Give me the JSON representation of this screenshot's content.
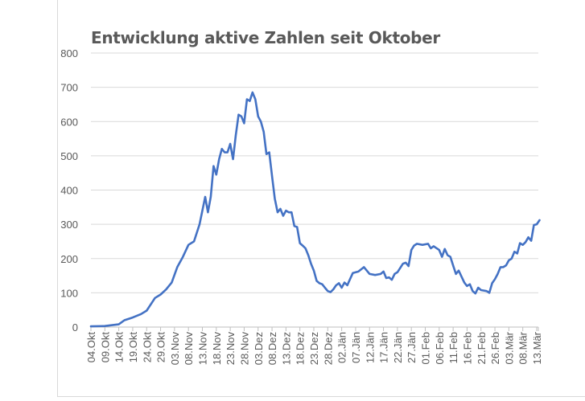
{
  "chart_data": {
    "type": "line",
    "title": "Entwicklung aktive Zahlen seit Oktober",
    "xlabel": "",
    "ylabel": "",
    "ylim": [
      0,
      800
    ],
    "yticks": [
      0,
      100,
      200,
      300,
      400,
      500,
      600,
      700,
      800
    ],
    "grid": true,
    "legend": "none",
    "color": "#4472c4",
    "xticks": [
      "04.Okt",
      "09.Okt",
      "14.Okt",
      "19.Okt",
      "24.Okt",
      "29.Okt",
      "03.Nov",
      "08.Nov",
      "13.Nov",
      "18.Nov",
      "23.Nov",
      "28.Nov",
      "03.Dez",
      "08.Dez",
      "13.Dez",
      "18.Dez",
      "23.Dez",
      "28.Dez",
      "02.Jän",
      "07.Jän",
      "12.Jän",
      "17.Jän",
      "22.Jän",
      "27.Jän",
      "01.Feb",
      "06.Feb",
      "11.Feb",
      "16.Feb",
      "21.Feb",
      "26.Feb",
      "03.Mär",
      "08.Mär",
      "13.Mär"
    ],
    "x": [
      "04.Okt",
      "09.Okt",
      "14.Okt",
      "16.Okt",
      "19.Okt",
      "22.Okt",
      "24.Okt",
      "27.Okt",
      "29.Okt",
      "31.Okt",
      "02.Nov",
      "04.Nov",
      "06.Nov",
      "08.Nov",
      "10.Nov",
      "12.Nov",
      "14.Nov",
      "15.Nov",
      "16.Nov",
      "17.Nov",
      "18.Nov",
      "19.Nov",
      "20.Nov",
      "21.Nov",
      "22.Nov",
      "23.Nov",
      "24.Nov",
      "25.Nov",
      "26.Nov",
      "27.Nov",
      "28.Nov",
      "29.Nov",
      "30.Nov",
      "01.Dez",
      "02.Dez",
      "03.Dez",
      "04.Dez",
      "05.Dez",
      "06.Dez",
      "07.Dez",
      "08.Dez",
      "09.Dez",
      "10.Dez",
      "11.Dez",
      "12.Dez",
      "13.Dez",
      "14.Dez",
      "15.Dez",
      "16.Dez",
      "17.Dez",
      "18.Dez",
      "19.Dez",
      "20.Dez",
      "21.Dez",
      "22.Dez",
      "23.Dez",
      "24.Dez",
      "25.Dez",
      "26.Dez",
      "27.Dez",
      "28.Dez",
      "29.Dez",
      "30.Dez",
      "31.Dez",
      "01.Jän",
      "02.Jän",
      "03.Jän",
      "04.Jän",
      "05.Jän",
      "06.Jän",
      "08.Jän",
      "10.Jän",
      "12.Jän",
      "14.Jän",
      "16.Jän",
      "17.Jän",
      "18.Jän",
      "19.Jän",
      "20.Jän",
      "21.Jän",
      "22.Jän",
      "24.Jän",
      "25.Jän",
      "26.Jän",
      "27.Jän",
      "28.Jän",
      "29.Jän",
      "31.Jän",
      "02.Feb",
      "03.Feb",
      "04.Feb",
      "06.Feb",
      "07.Feb",
      "08.Feb",
      "09.Feb",
      "10.Feb",
      "11.Feb",
      "12.Feb",
      "13.Feb",
      "15.Feb",
      "16.Feb",
      "17.Feb",
      "18.Feb",
      "19.Feb",
      "20.Feb",
      "21.Feb",
      "23.Feb",
      "24.Feb",
      "25.Feb",
      "26.Feb",
      "27.Feb",
      "28.Feb",
      "01.Mär",
      "02.Mär",
      "03.Mär",
      "04.Mär",
      "05.Mär",
      "06.Mär",
      "07.Mär",
      "08.Mär",
      "09.Mär",
      "10.Mär",
      "11.Mär",
      "12.Mär",
      "13.Mär",
      "14.Mär"
    ],
    "values": [
      2,
      3,
      8,
      20,
      28,
      38,
      48,
      85,
      95,
      110,
      130,
      175,
      205,
      240,
      250,
      300,
      380,
      335,
      380,
      470,
      445,
      490,
      520,
      510,
      510,
      535,
      490,
      560,
      620,
      615,
      595,
      665,
      660,
      685,
      665,
      615,
      600,
      570,
      505,
      510,
      440,
      375,
      335,
      345,
      325,
      340,
      335,
      335,
      295,
      292,
      245,
      238,
      230,
      210,
      185,
      165,
      135,
      128,
      125,
      115,
      105,
      102,
      110,
      122,
      128,
      115,
      130,
      122,
      140,
      158,
      162,
      175,
      155,
      152,
      155,
      162,
      143,
      145,
      138,
      155,
      160,
      185,
      188,
      178,
      225,
      238,
      243,
      240,
      243,
      230,
      236,
      225,
      205,
      228,
      210,
      205,
      180,
      155,
      165,
      130,
      120,
      125,
      105,
      98,
      115,
      108,
      105,
      100,
      128,
      140,
      155,
      175,
      175,
      180,
      195,
      200,
      220,
      215,
      245,
      240,
      248,
      262,
      252,
      298,
      300,
      312
    ]
  }
}
